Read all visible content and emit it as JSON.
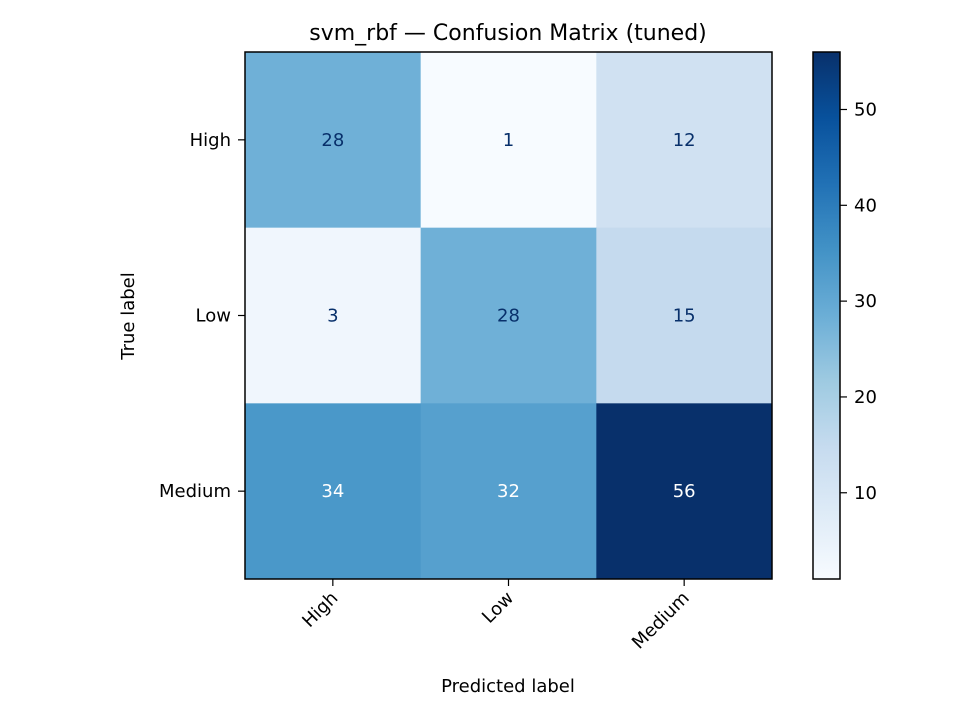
{
  "chart_data": {
    "type": "heatmap",
    "title": "svm_rbf — Confusion Matrix (tuned)",
    "xlabel": "Predicted label",
    "ylabel": "True label",
    "x_categories": [
      "High",
      "Low",
      "Medium"
    ],
    "y_categories": [
      "High",
      "Low",
      "Medium"
    ],
    "values": [
      [
        28,
        1,
        12
      ],
      [
        3,
        28,
        15
      ],
      [
        34,
        32,
        56
      ]
    ],
    "colormap": "Blues",
    "color_range": [
      1,
      56
    ],
    "colorbar_ticks": [
      10,
      20,
      30,
      40,
      50
    ],
    "grid": false
  }
}
